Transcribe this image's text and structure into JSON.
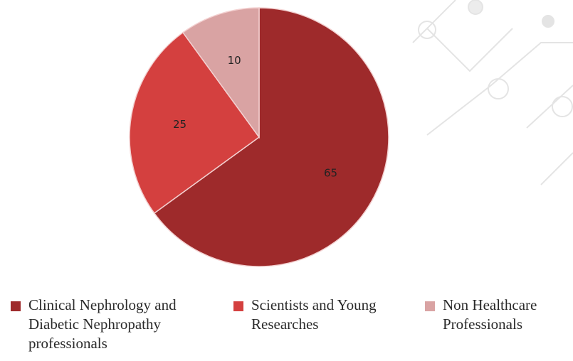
{
  "chart_data": {
    "type": "pie",
    "categories": [
      "Clinical Nephrology and Diabetic Nephropathy professionals",
      "Scientists and Young Researches",
      "Non Healthcare Professionals"
    ],
    "values": [
      65,
      25,
      10
    ],
    "colors": [
      "#9e2a2b",
      "#d4403f",
      "#d9a3a3"
    ]
  }
}
